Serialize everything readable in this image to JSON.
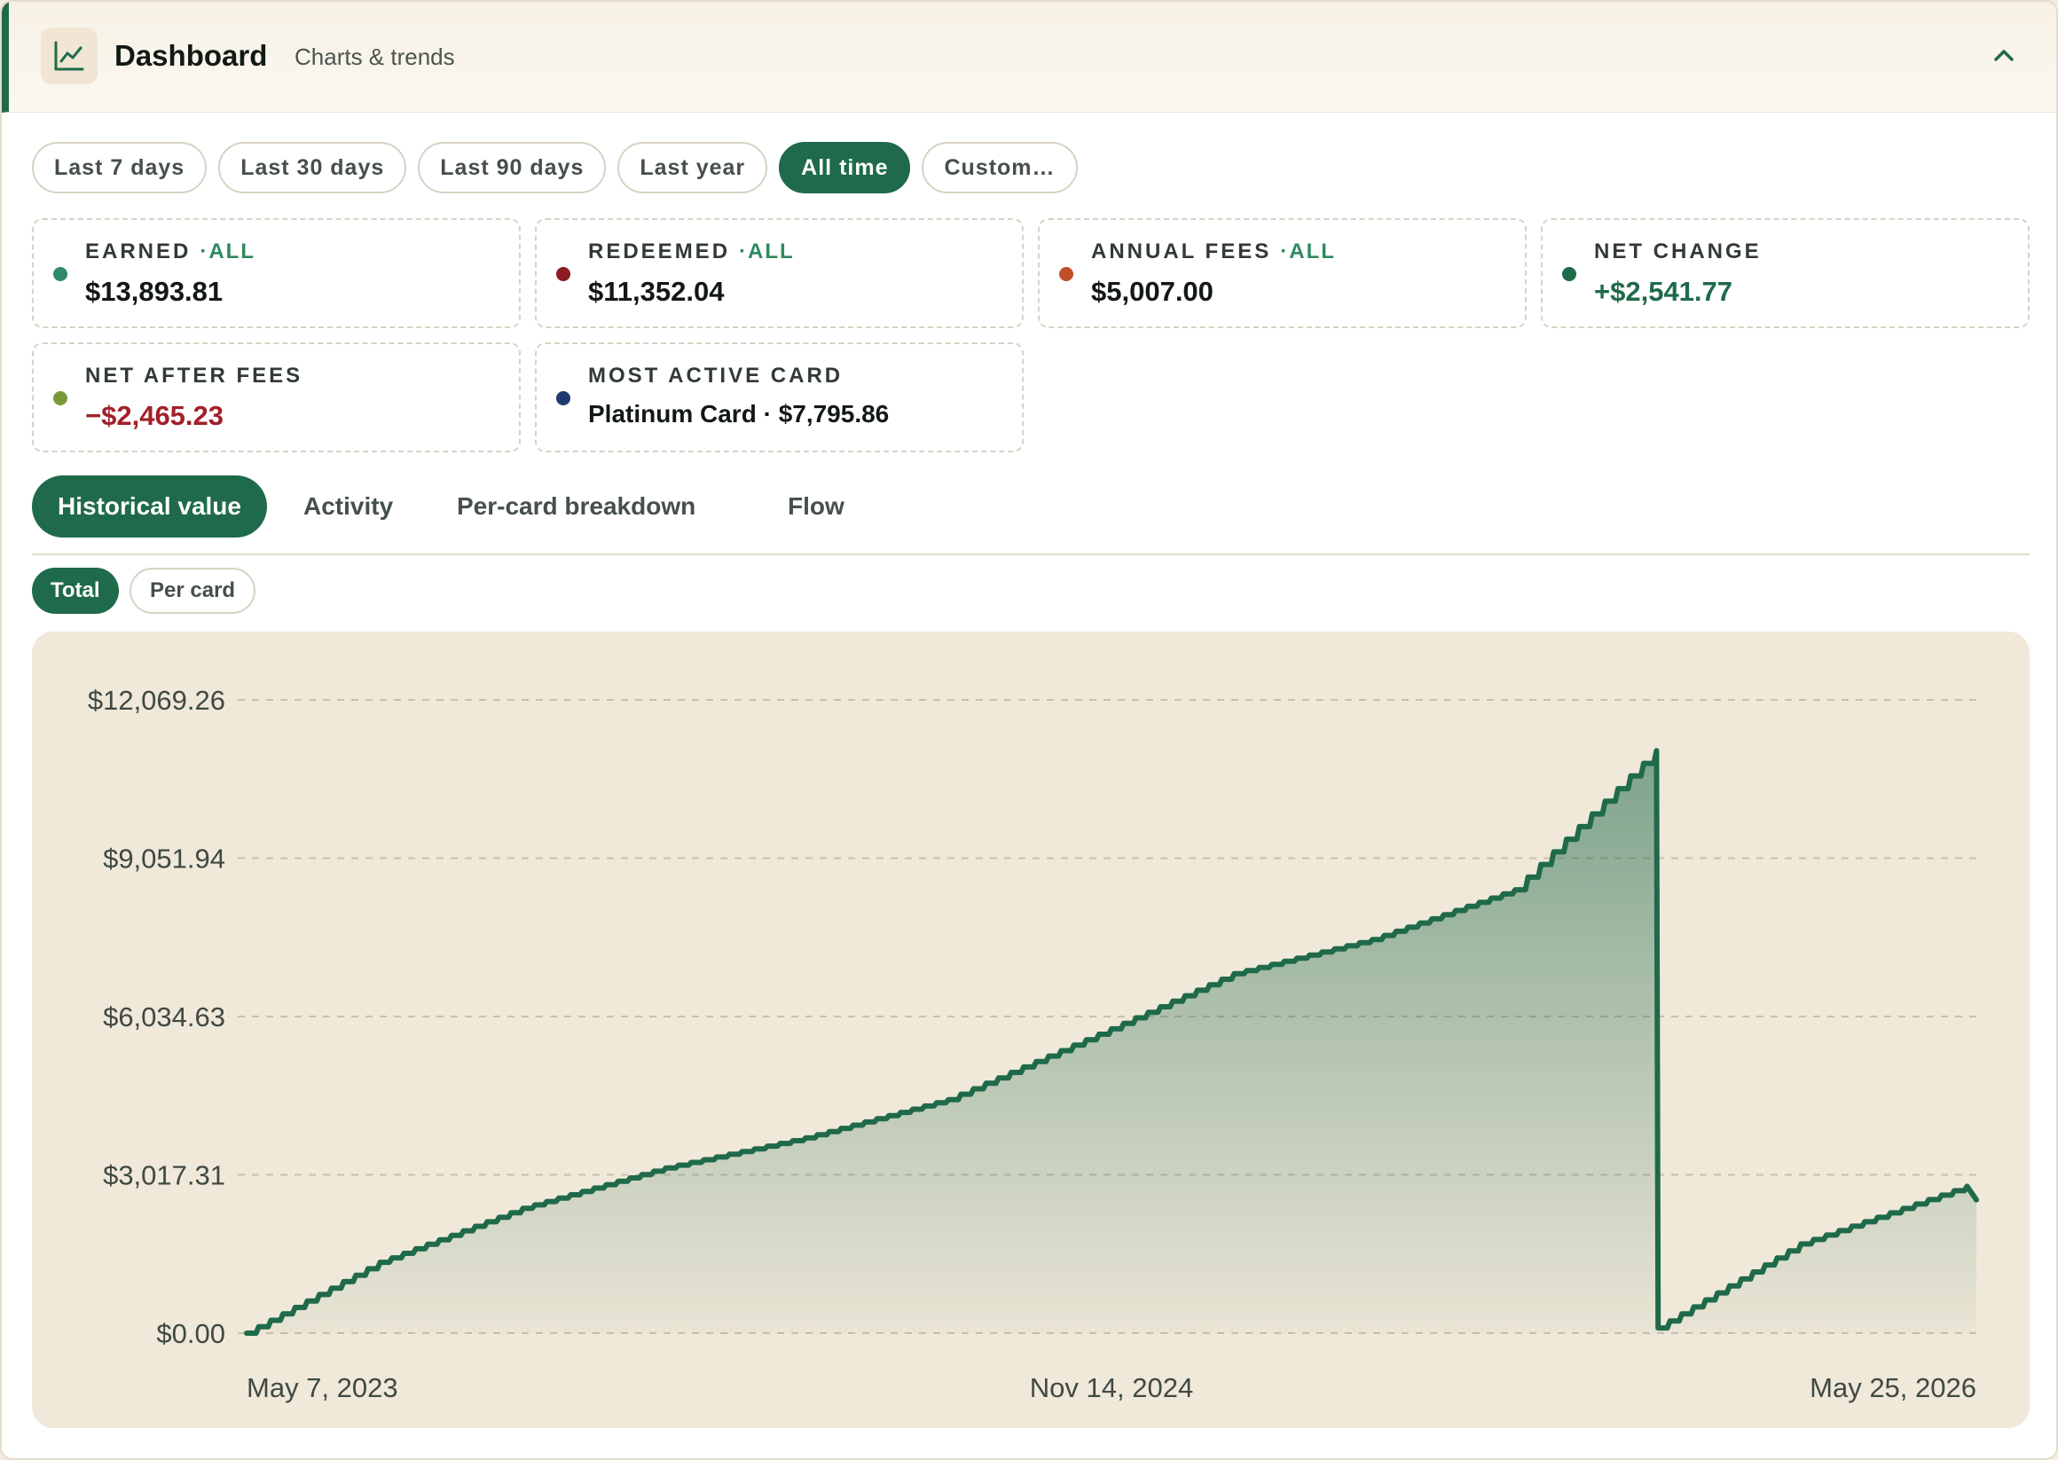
{
  "header": {
    "title": "Dashboard",
    "subtitle": "Charts & trends"
  },
  "range_filters": [
    {
      "label": "Last 7 days",
      "active": false
    },
    {
      "label": "Last 30 days",
      "active": false
    },
    {
      "label": "Last 90 days",
      "active": false
    },
    {
      "label": "Last year",
      "active": false
    },
    {
      "label": "All time",
      "active": true
    },
    {
      "label": "Custom…",
      "active": false
    }
  ],
  "stats": {
    "earned": {
      "label": "EARNED",
      "tag": "·ALL",
      "value": "$13,893.81",
      "dot_color": "#2e8a6a"
    },
    "redeemed": {
      "label": "REDEEMED",
      "tag": "·ALL",
      "value": "$11,352.04",
      "dot_color": "#8a1c22"
    },
    "annual_fees": {
      "label": "ANNUAL FEES",
      "tag": "·ALL",
      "value": "$5,007.00",
      "dot_color": "#c0502a"
    },
    "net_change": {
      "label": "NET CHANGE",
      "value": "+$2,541.77",
      "dot_color": "#1f6a4a",
      "value_color": "#1f6a4a"
    },
    "net_after_fees": {
      "label": "NET AFTER FEES",
      "value": "−$2,465.23",
      "dot_color": "#7a9a3a",
      "value_color": "#a1202a"
    },
    "most_active_card": {
      "label": "MOST ACTIVE CARD",
      "value": "Platinum Card · $7,795.86",
      "dot_color": "#1e3a6e"
    }
  },
  "view_tabs": [
    {
      "label": "Historical value",
      "active": true
    },
    {
      "label": "Activity",
      "active": false
    },
    {
      "label": "Per-card breakdown",
      "active": false
    },
    {
      "label": "Flow",
      "active": false
    }
  ],
  "series_toggle": [
    {
      "label": "Total",
      "active": true
    },
    {
      "label": "Per card",
      "active": false
    }
  ],
  "chart_data": {
    "type": "area",
    "title": "",
    "xlabel": "",
    "ylabel": "",
    "y_ticks": [
      "$0.00",
      "$3,017.31",
      "$6,034.63",
      "$9,051.94",
      "$12,069.26"
    ],
    "ylim": [
      0,
      12069.26
    ],
    "x_ticks": [
      "May 7, 2023",
      "Nov 14, 2024",
      "May 25, 2026"
    ],
    "grid": true,
    "legend": "none",
    "color": "#1f6a4a",
    "series": [
      {
        "x": [
          "2023-05-07",
          "2023-08-01",
          "2023-11-01",
          "2024-02-01",
          "2024-05-01",
          "2024-08-01",
          "2024-11-14",
          "2025-02-01",
          "2025-05-01",
          "2025-08-01",
          "2025-10-31",
          "2025-11-01",
          "2026-02-01",
          "2026-05-19",
          "2026-05-25"
        ],
        "y": [
          0,
          1350,
          2380,
          3150,
          3720,
          4450,
          5800,
          6850,
          7500,
          8450,
          11100,
          100,
          1700,
          2800,
          2540
        ]
      }
    ]
  }
}
